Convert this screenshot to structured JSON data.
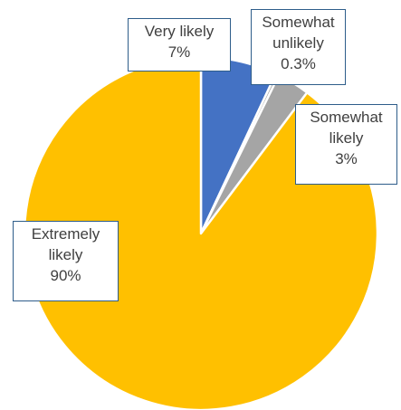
{
  "chart_data": {
    "type": "pie",
    "title": "",
    "start_angle_deg": 0,
    "direction": "clockwise",
    "slices": [
      {
        "label_lines": [
          "Very likely"
        ],
        "value_label": "7%",
        "value": 7,
        "color": "#4472C4"
      },
      {
        "label_lines": [
          "Somewhat",
          "unlikely"
        ],
        "value_label": "0.3%",
        "value": 0.3,
        "color": "#A5A5A5"
      },
      {
        "label_lines": [
          "Somewhat",
          "likely"
        ],
        "value_label": "3%",
        "value": 3,
        "color": "#A5A5A5"
      },
      {
        "label_lines": [
          "Extremely",
          "likely"
        ],
        "value_label": "90%",
        "value": 90,
        "color": "#FFC000"
      }
    ]
  }
}
